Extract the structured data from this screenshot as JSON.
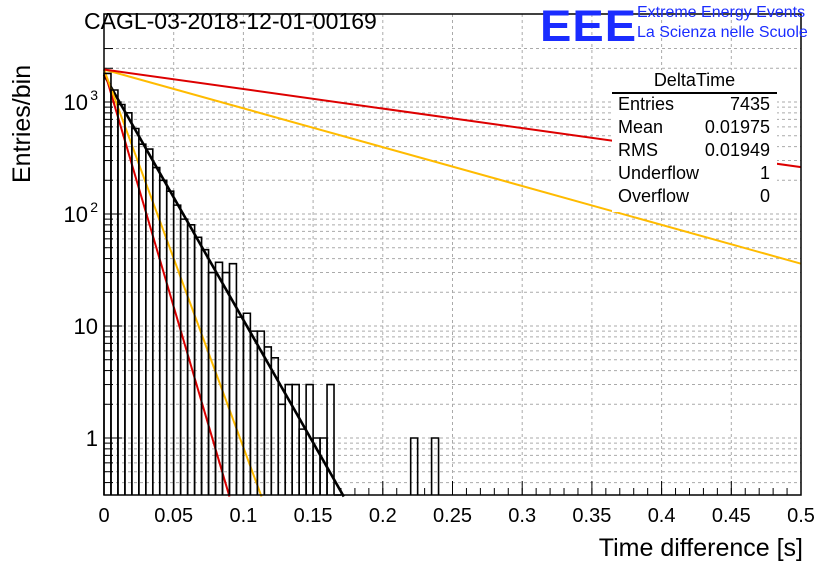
{
  "title": "CAGL-03-2018-12-01-00169",
  "logo": {
    "letters": "EEE",
    "line1": "Extreme Energy Events",
    "line2": "La Scienza nelle Scuole",
    "color": "#1a2cff"
  },
  "stats": {
    "name": "DeltaTime",
    "rows": [
      {
        "key": "Entries",
        "value": "7435"
      },
      {
        "key": "Mean",
        "value": "0.01975"
      },
      {
        "key": "RMS",
        "value": "0.01949"
      },
      {
        "key": "Underflow",
        "value": "1"
      },
      {
        "key": "Overflow",
        "value": "0"
      }
    ]
  },
  "chart_data": {
    "type": "line",
    "title": "CAGL-03-2018-12-01-00169",
    "xlabel": "Time difference [s]",
    "ylabel": "Entries/bin",
    "xlim": [
      0,
      0.5
    ],
    "ylim": [
      0.3,
      3000
    ],
    "yscale": "log",
    "grid": true,
    "x_ticks": [
      "0",
      "0.05",
      "0.1",
      "0.15",
      "0.2",
      "0.25",
      "0.3",
      "0.35",
      "0.4",
      "0.45",
      "0.5"
    ],
    "y_ticks": [
      "1",
      "10",
      "10²",
      "10³"
    ],
    "histogram": {
      "color": "#000000",
      "bin_width": 0.005,
      "bins": [
        {
          "x": 0.0,
          "y": 1800
        },
        {
          "x": 0.005,
          "y": 1280
        },
        {
          "x": 0.01,
          "y": 950
        },
        {
          "x": 0.015,
          "y": 800
        },
        {
          "x": 0.02,
          "y": 580
        },
        {
          "x": 0.025,
          "y": 420
        },
        {
          "x": 0.03,
          "y": 380
        },
        {
          "x": 0.035,
          "y": 260
        },
        {
          "x": 0.04,
          "y": 200
        },
        {
          "x": 0.045,
          "y": 160
        },
        {
          "x": 0.05,
          "y": 120
        },
        {
          "x": 0.055,
          "y": 90
        },
        {
          "x": 0.06,
          "y": 80
        },
        {
          "x": 0.065,
          "y": 62
        },
        {
          "x": 0.07,
          "y": 48
        },
        {
          "x": 0.075,
          "y": 30
        },
        {
          "x": 0.08,
          "y": 37
        },
        {
          "x": 0.085,
          "y": 30
        },
        {
          "x": 0.09,
          "y": 36
        },
        {
          "x": 0.095,
          "y": 12
        },
        {
          "x": 0.1,
          "y": 13
        },
        {
          "x": 0.105,
          "y": 9
        },
        {
          "x": 0.11,
          "y": 9
        },
        {
          "x": 0.115,
          "y": 6.5
        },
        {
          "x": 0.12,
          "y": 5.2
        },
        {
          "x": 0.125,
          "y": 2
        },
        {
          "x": 0.13,
          "y": 3
        },
        {
          "x": 0.135,
          "y": 3
        },
        {
          "x": 0.14,
          "y": 1.2
        },
        {
          "x": 0.145,
          "y": 3
        },
        {
          "x": 0.15,
          "y": 1
        },
        {
          "x": 0.155,
          "y": 1
        },
        {
          "x": 0.16,
          "y": 3
        },
        {
          "x": 0.165,
          "y": 0.3
        },
        {
          "x": 0.22,
          "y": 1
        },
        {
          "x": 0.235,
          "y": 1
        }
      ]
    },
    "series": [
      {
        "color": "#000000",
        "points": [
          [
            0,
            1750
          ],
          [
            0.172,
            0.3
          ]
        ]
      },
      {
        "color": "#dd0000",
        "points": [
          [
            0,
            1950
          ],
          [
            0.09,
            0.3
          ]
        ]
      },
      {
        "color": "#ffbb00",
        "points": [
          [
            0,
            1950
          ],
          [
            0.113,
            0.3
          ]
        ]
      },
      {
        "color": "#ffbb00",
        "points": [
          [
            0,
            1950
          ],
          [
            0.5,
            36
          ]
        ]
      },
      {
        "color": "#dd0000",
        "points": [
          [
            0,
            1950
          ],
          [
            0.5,
            262
          ]
        ]
      }
    ]
  }
}
